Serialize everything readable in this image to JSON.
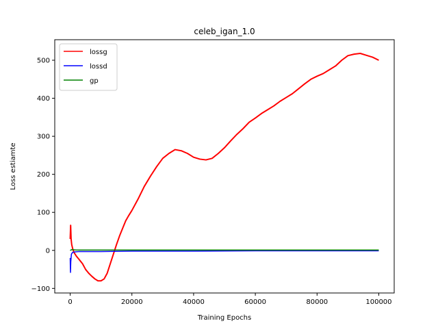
{
  "chart_data": {
    "type": "line",
    "title": "celeb_igan_1.0",
    "xlabel": "Training Epochs",
    "ylabel": "Loss estiamte",
    "xlim": [
      -5000,
      105000
    ],
    "ylim": [
      -112,
      554
    ],
    "x_ticks": [
      0,
      20000,
      40000,
      60000,
      80000,
      100000
    ],
    "x_tick_labels": [
      "0",
      "20000",
      "40000",
      "60000",
      "80000",
      "100000"
    ],
    "y_ticks": [
      -100,
      0,
      100,
      200,
      300,
      400,
      500
    ],
    "y_tick_labels": [
      "−100",
      "0",
      "100",
      "200",
      "300",
      "400",
      "500"
    ],
    "grid": false,
    "legend_position": "upper-left",
    "series": [
      {
        "name": "lossg",
        "color": "#ff0000",
        "x": [
          0,
          150,
          300,
          500,
          800,
          1200,
          2000,
          3000,
          4000,
          5000,
          6000,
          7000,
          8000,
          9000,
          10000,
          11000,
          12000,
          13000,
          14000,
          15000,
          16000,
          17000,
          18000,
          19000,
          20000,
          22000,
          24000,
          26000,
          28000,
          30000,
          32000,
          34000,
          36000,
          38000,
          40000,
          42000,
          44000,
          46000,
          48000,
          50000,
          52000,
          54000,
          56000,
          58000,
          60000,
          62000,
          64000,
          66000,
          68000,
          70000,
          72000,
          74000,
          76000,
          78000,
          80000,
          82000,
          84000,
          86000,
          88000,
          90000,
          92000,
          94000,
          96000,
          98000,
          100000
        ],
        "y": [
          30,
          66,
          30,
          15,
          5,
          -5,
          -15,
          -25,
          -35,
          -50,
          -60,
          -68,
          -75,
          -80,
          -80,
          -75,
          -60,
          -35,
          -10,
          15,
          38,
          58,
          78,
          92,
          105,
          135,
          168,
          195,
          220,
          242,
          255,
          265,
          262,
          255,
          245,
          240,
          238,
          242,
          255,
          270,
          288,
          305,
          320,
          337,
          348,
          360,
          370,
          380,
          392,
          402,
          412,
          425,
          438,
          450,
          458,
          465,
          475,
          485,
          500,
          512,
          516,
          518,
          513,
          508,
          500
        ]
      },
      {
        "name": "lossd",
        "color": "#0000ff",
        "x": [
          0,
          50,
          100,
          200,
          400,
          800,
          1500,
          3000,
          10000,
          20000,
          40000,
          60000,
          80000,
          100000
        ],
        "y": [
          -20,
          -45,
          -58,
          -30,
          -10,
          -5,
          -4,
          -3,
          -3,
          -2,
          -2,
          -1,
          -1,
          -1
        ]
      },
      {
        "name": "gp",
        "color": "#008000",
        "x": [
          0,
          500,
          2000,
          10000,
          20000,
          40000,
          60000,
          80000,
          100000
        ],
        "y": [
          0,
          2,
          1,
          1,
          1,
          1,
          1,
          1,
          1
        ]
      }
    ]
  }
}
